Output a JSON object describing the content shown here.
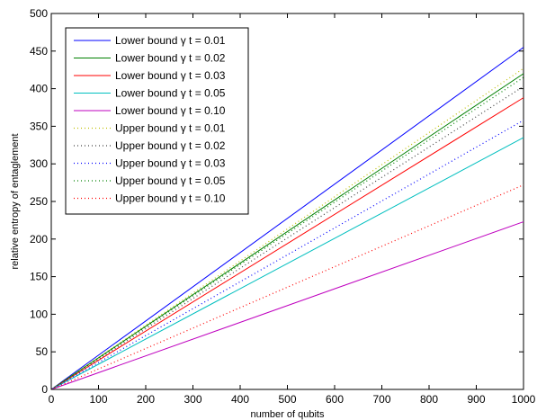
{
  "chart_data": {
    "type": "line",
    "title": "",
    "xlabel": "number of qubits",
    "ylabel": "relative entropy of entaglement",
    "xlim": [
      0,
      1000
    ],
    "ylim": [
      0,
      500
    ],
    "xticks": [
      0,
      100,
      200,
      300,
      400,
      500,
      600,
      700,
      800,
      900,
      1000
    ],
    "yticks": [
      0,
      50,
      100,
      150,
      200,
      250,
      300,
      350,
      400,
      450,
      500
    ],
    "xtick_labels": [
      "0",
      "100",
      "200",
      "300",
      "400",
      "500",
      "600",
      "700",
      "800",
      "900",
      "1000"
    ],
    "ytick_labels": [
      "0",
      "50",
      "100",
      "150",
      "200",
      "250",
      "300",
      "350",
      "400",
      "450",
      "500"
    ],
    "grid": false,
    "legend_position": "top-left",
    "x": [
      0,
      1000
    ],
    "series": [
      {
        "name": "Lower bound γ t = 0.01",
        "values": [
          0,
          455
        ],
        "color": "#0000ff",
        "style": "solid"
      },
      {
        "name": "Lower bound γ t = 0.02",
        "values": [
          0,
          420
        ],
        "color": "#008000",
        "style": "solid"
      },
      {
        "name": "Lower bound γ t = 0.03",
        "values": [
          0,
          388
        ],
        "color": "#ff0000",
        "style": "solid"
      },
      {
        "name": "Lower bound γ t = 0.05",
        "values": [
          0,
          335
        ],
        "color": "#00bfbf",
        "style": "solid"
      },
      {
        "name": "Lower bound γ t = 0.10",
        "values": [
          0,
          223
        ],
        "color": "#bf00bf",
        "style": "solid"
      },
      {
        "name": "Upper bound γ t = 0.01",
        "values": [
          0,
          427
        ],
        "color": "#bfbf00",
        "style": "dotted"
      },
      {
        "name": "Upper bound γ t = 0.02",
        "values": [
          0,
          403
        ],
        "color": "#404040",
        "style": "dotted"
      },
      {
        "name": "Upper bound γ t = 0.03",
        "values": [
          0,
          358
        ],
        "color": "#0000ff",
        "style": "dotted"
      },
      {
        "name": "Upper bound γ t = 0.05",
        "values": [
          0,
          415
        ],
        "color": "#008000",
        "style": "dotted"
      },
      {
        "name": "Upper bound γ t = 0.10",
        "values": [
          0,
          272
        ],
        "color": "#ff0000",
        "style": "dotted"
      }
    ]
  }
}
